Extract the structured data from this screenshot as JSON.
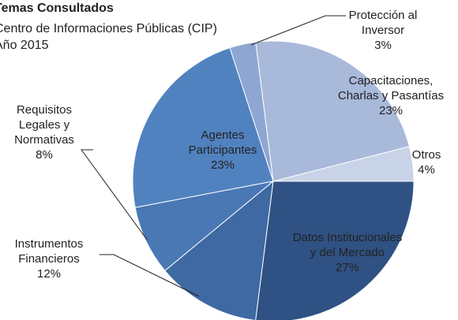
{
  "chart_data": {
    "type": "pie",
    "title": "Temas Consultados",
    "subtitle": [
      "Centro de Informaciones Públicas (CIP)",
      "Año 2015"
    ],
    "categories": [
      "Otros",
      "Capacitaciones, Charlas y Pasantías",
      "Protección al Inversor",
      "Agentes Participantes",
      "Requisitos Legales y Normativas",
      "Instrumentos Financieros",
      "Datos Institucionales y del Mercado"
    ],
    "values": [
      4,
      23,
      3,
      23,
      8,
      12,
      27
    ],
    "value_labels": [
      "4%",
      "23%",
      "3%",
      "23%",
      "8%",
      "12%",
      "27%"
    ],
    "colors": [
      "#c9d3e8",
      "#a9b9da",
      "#8ea6d2",
      "#5182c0",
      "#4a78b5",
      "#3e69a3",
      "#2f5183"
    ]
  }
}
